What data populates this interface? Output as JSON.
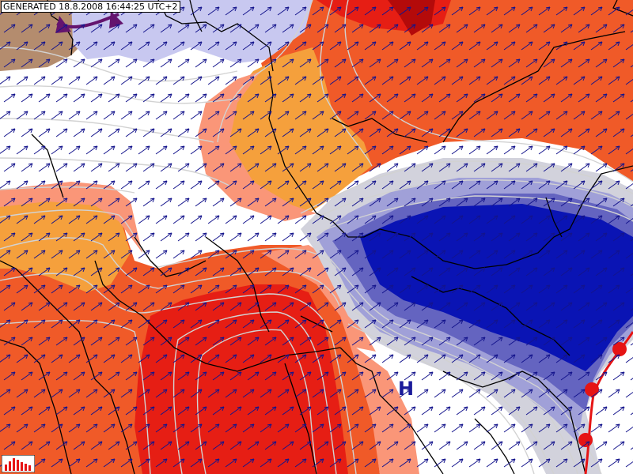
{
  "header": {
    "generated_label": "GENERATED 18.8.2008 16:44:25 UTC+2"
  },
  "map": {
    "pressure_centers": [
      {
        "type": "high",
        "label": "H"
      }
    ],
    "colors": {
      "background": "#ffffff",
      "cold_light": "#c8c8f0",
      "cold_mid": "#7878c8",
      "cold_deep": "#0a14b4",
      "warm_light": "#fa9678",
      "warm_orange": "#f5a03c",
      "warm_red_orange": "#f05a28",
      "warm_deep": "#e61e14",
      "warm_darkest": "#b40a0a",
      "brown_nw": "#b48c6e",
      "isoline": "#d2d2d2",
      "border": "#000000",
      "wind_arrow": "#14148c",
      "cold_front": "#e61414",
      "occluded_front": "#64146e",
      "high_label": "#1a1a9a"
    },
    "icons": {
      "wind": "arrow-icon",
      "legend": "legend-bars-icon"
    }
  }
}
